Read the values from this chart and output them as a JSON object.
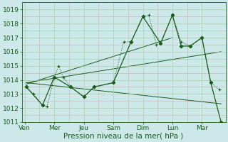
{
  "bg_color": "#cce8e8",
  "grid_major_color": "#aaccaa",
  "grid_minor_color": "#ccbbbb",
  "line_color": "#1a5c1a",
  "xlabel": "Pression niveau de la mer( hPa )",
  "xlabel_fontsize": 7.5,
  "tick_label_fontsize": 6.5,
  "ylim": [
    1011,
    1019.5
  ],
  "yticks": [
    1011,
    1012,
    1013,
    1014,
    1015,
    1016,
    1017,
    1018,
    1019
  ],
  "x_labels": [
    "Ven",
    "Mer",
    "Jeu",
    "Sam",
    "Dim",
    "Lun",
    "Mar"
  ],
  "x_positions": [
    0,
    1,
    2,
    3,
    4,
    5,
    6
  ],
  "xlim": [
    -0.1,
    6.8
  ],
  "series1_x": [
    0.05,
    0.3,
    0.6,
    0.75,
    1.0,
    1.15,
    1.3,
    1.55,
    2.0,
    2.35,
    3.0,
    3.35,
    3.6,
    4.0,
    4.2,
    4.45,
    4.6,
    5.0,
    5.3,
    5.6,
    6.0,
    6.3,
    6.6
  ],
  "series1_y": [
    1013.5,
    1013.0,
    1012.2,
    1012.1,
    1014.2,
    1015.0,
    1014.2,
    1013.5,
    1012.8,
    1013.5,
    1013.8,
    1016.7,
    1016.7,
    1018.5,
    1018.6,
    1016.5,
    1016.6,
    1018.6,
    1016.7,
    1016.4,
    1017.0,
    1013.8,
    1013.3
  ],
  "series2_x": [
    0.05,
    0.6,
    1.0,
    1.55,
    2.0,
    2.35,
    3.0,
    3.6,
    4.0,
    4.6,
    5.0,
    5.3,
    5.6,
    6.0,
    6.3,
    6.65
  ],
  "series2_y": [
    1013.5,
    1012.2,
    1014.2,
    1013.5,
    1012.8,
    1013.5,
    1013.8,
    1016.7,
    1018.5,
    1016.6,
    1018.6,
    1016.4,
    1016.4,
    1017.0,
    1013.8,
    1011.0
  ],
  "trend1_x": [
    0.05,
    6.65
  ],
  "trend1_y": [
    1013.8,
    1016.0
  ],
  "trend2_x": [
    0.05,
    6.65
  ],
  "trend2_y": [
    1013.8,
    1012.3
  ],
  "trend3_x": [
    0.05,
    5.0
  ],
  "trend3_y": [
    1013.7,
    1017.0
  ]
}
